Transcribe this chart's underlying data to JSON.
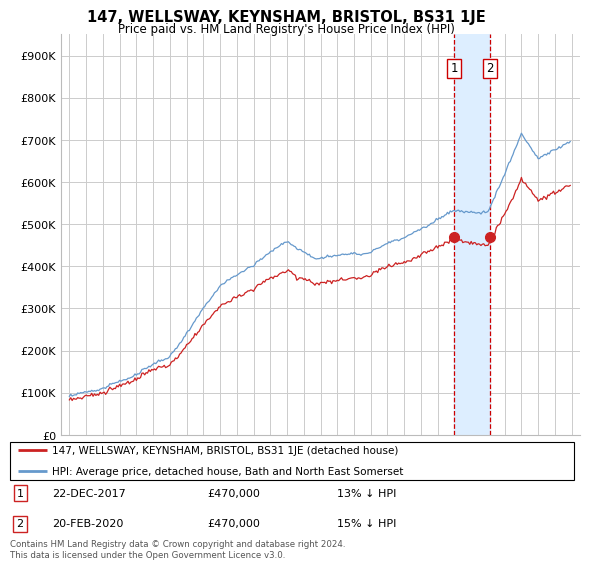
{
  "title": "147, WELLSWAY, KEYNSHAM, BRISTOL, BS31 1JE",
  "subtitle": "Price paid vs. HM Land Registry's House Price Index (HPI)",
  "ylabel_ticks": [
    "£0",
    "£100K",
    "£200K",
    "£300K",
    "£400K",
    "£500K",
    "£600K",
    "£700K",
    "£800K",
    "£900K"
  ],
  "ytick_vals": [
    0,
    100000,
    200000,
    300000,
    400000,
    500000,
    600000,
    700000,
    800000,
    900000
  ],
  "ylim": [
    0,
    950000
  ],
  "sale1_date": "22-DEC-2017",
  "sale1_price": 470000,
  "sale1_pct": "13% ↓ HPI",
  "sale1_year": 2017.97,
  "sale2_date": "20-FEB-2020",
  "sale2_price": 470000,
  "sale2_pct": "15% ↓ HPI",
  "sale2_year": 2020.13,
  "legend_line1": "147, WELLSWAY, KEYNSHAM, BRISTOL, BS31 1JE (detached house)",
  "legend_line2": "HPI: Average price, detached house, Bath and North East Somerset",
  "footer": "Contains HM Land Registry data © Crown copyright and database right 2024.\nThis data is licensed under the Open Government Licence v3.0.",
  "hpi_color": "#6699cc",
  "price_color": "#cc2222",
  "shade_color": "#ddeeff",
  "vline_color": "#cc0000",
  "marker_color": "#cc2222",
  "grid_color": "#cccccc",
  "background_color": "#ffffff"
}
